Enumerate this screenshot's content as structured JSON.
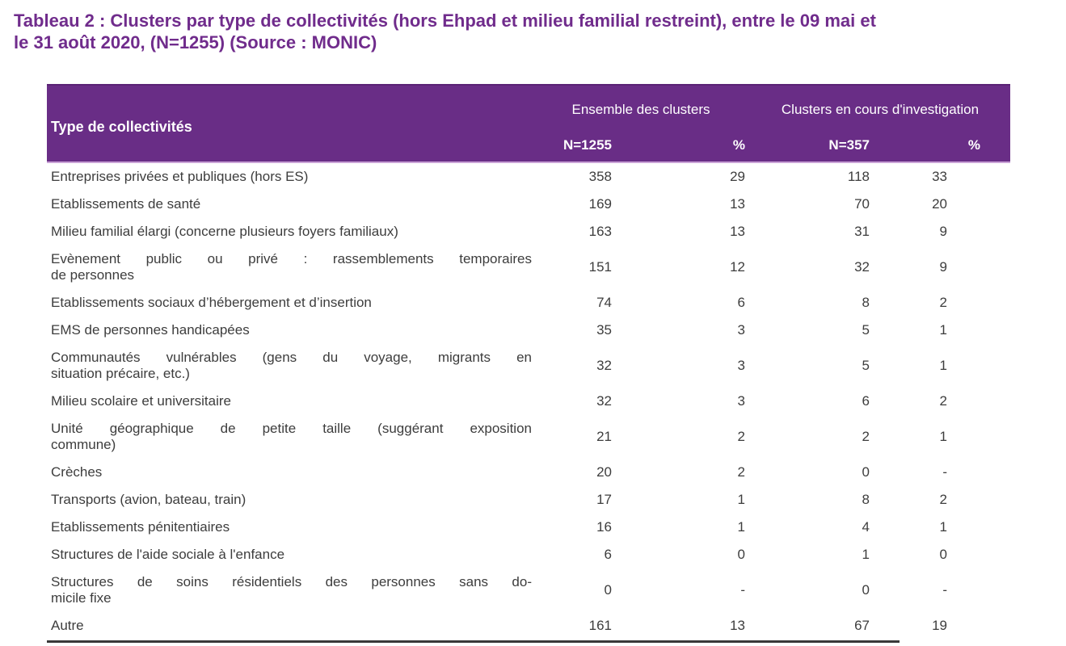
{
  "caption": "Tableau 2 : Clusters par type de collectivités (hors Ehpad et milieu familial restreint), entre le 09 mai et\nle 31 août 2020, (N=1255) (Source : MONIC)",
  "table": {
    "label_header": "Type de collectivités",
    "groups": [
      "Ensemble des clusters",
      "Clusters en cours d'investigation"
    ],
    "sub_headers": [
      "N=1255",
      "%",
      "N=357",
      "%"
    ],
    "rows": [
      {
        "label": "Entreprises privées et publiques (hors ES)",
        "n_total": "358",
        "pct_total": "29",
        "n_inv": "118",
        "pct_inv": "33"
      },
      {
        "label": "Etablissements de santé",
        "n_total": "169",
        "pct_total": "13",
        "n_inv": "70",
        "pct_inv": "20"
      },
      {
        "label": "Milieu familial élargi (concerne plusieurs foyers familiaux)",
        "n_total": "163",
        "pct_total": "13",
        "n_inv": "31",
        "pct_inv": "9"
      },
      {
        "label": "Evènement public ou privé : rassemblements temporaires\nde personnes",
        "n_total": "151",
        "pct_total": "12",
        "n_inv": "32",
        "pct_inv": "9"
      },
      {
        "label": "Etablissements sociaux d’hébergement et d’insertion",
        "n_total": "74",
        "pct_total": "6",
        "n_inv": "8",
        "pct_inv": "2"
      },
      {
        "label": "EMS de personnes handicapées",
        "n_total": "35",
        "pct_total": "3",
        "n_inv": "5",
        "pct_inv": "1"
      },
      {
        "label": "Communautés vulnérables (gens du voyage, migrants en\nsituation précaire, etc.)",
        "n_total": "32",
        "pct_total": "3",
        "n_inv": "5",
        "pct_inv": "1"
      },
      {
        "label": "Milieu scolaire et universitaire",
        "n_total": "32",
        "pct_total": "3",
        "n_inv": "6",
        "pct_inv": "2"
      },
      {
        "label": "Unité géographique de petite taille (suggérant exposition\ncommune)",
        "n_total": "21",
        "pct_total": "2",
        "n_inv": "2",
        "pct_inv": "1"
      },
      {
        "label": "Crèches",
        "n_total": "20",
        "pct_total": "2",
        "n_inv": "0",
        "pct_inv": "-"
      },
      {
        "label": "Transports (avion, bateau, train)",
        "n_total": "17",
        "pct_total": "1",
        "n_inv": "8",
        "pct_inv": "2"
      },
      {
        "label": "Etablissements pénitentiaires",
        "n_total": "16",
        "pct_total": "1",
        "n_inv": "4",
        "pct_inv": "1"
      },
      {
        "label": "Structures de l'aide sociale à l'enfance",
        "n_total": "6",
        "pct_total": "0",
        "n_inv": "1",
        "pct_inv": "0"
      },
      {
        "label": "Structures de soins résidentiels des personnes sans do-\nmicile fixe",
        "n_total": "0",
        "pct_total": "-",
        "n_inv": "0",
        "pct_inv": "-"
      },
      {
        "label": "Autre",
        "n_total": "161",
        "pct_total": "13",
        "n_inv": "67",
        "pct_inv": "19"
      }
    ]
  },
  "colors": {
    "title_text": "#702C8C",
    "header_background": "#692D86",
    "header_top_border": "#5A2375",
    "header_text": "#FFFFFF",
    "header_separator": "#C9A2D6",
    "body_text": "#3D3D3D",
    "bottom_rule": "#3A3A3A",
    "page_background": "#FFFFFF"
  }
}
